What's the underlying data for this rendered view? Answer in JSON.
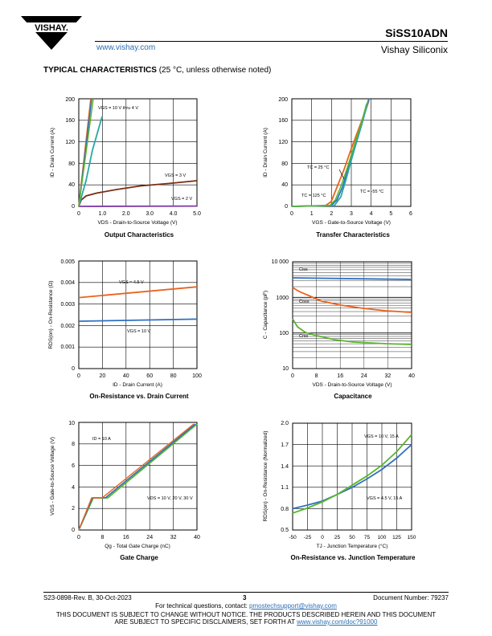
{
  "header": {
    "logo_text": "VISHAY.",
    "url": "www.vishay.com",
    "part_number": "SiSS10ADN",
    "company": "Vishay Siliconix"
  },
  "section": {
    "title": "TYPICAL CHARACTERISTICS",
    "subtitle": "(25 °C, unless otherwise noted)"
  },
  "colors": {
    "orange": "#e8641e",
    "blue": "#2f6fc0",
    "teal": "#2aa7a7",
    "green": "#5ab52e",
    "brown": "#7a2d12",
    "purple": "#7b3aa6",
    "gray": "#666666"
  },
  "charts": {
    "c1": {
      "title": "Output Characteristics",
      "ylabel": "ID - Drain Current (A)",
      "xlabel": "VDS - Drain-to-Source Voltage (V)",
      "yticks": [
        "0",
        "40",
        "80",
        "120",
        "160",
        "200"
      ],
      "xticks": [
        "0",
        "1.0",
        "2.0",
        "3.0",
        "4.0",
        "5.0"
      ],
      "labels": [
        "VGS = 10 V thru 4 V",
        "VGS = 3 V",
        "VGS = 2 V"
      ]
    },
    "c2": {
      "title": "Transfer Characteristics",
      "ylabel": "ID - Drain Current (A)",
      "xlabel": "VGS - Gate-to-Source Voltage (V)",
      "yticks": [
        "0",
        "40",
        "80",
        "120",
        "160",
        "200"
      ],
      "xticks": [
        "0",
        "1",
        "2",
        "3",
        "4",
        "5",
        "6"
      ],
      "labels": [
        "TC = 25 °C",
        "TC = 125 °C",
        "TC = -55 °C"
      ]
    },
    "c3": {
      "title": "On-Resistance vs. Drain Current",
      "ylabel": "RDS(on) - On-Resistance (Ω)",
      "xlabel": "ID - Drain Current (A)",
      "yticks": [
        "0",
        "0.001",
        "0.002",
        "0.003",
        "0.004",
        "0.005"
      ],
      "xticks": [
        "0",
        "20",
        "40",
        "60",
        "80",
        "100"
      ],
      "labels": [
        "VGS = 4.5 V",
        "VGS = 10 V"
      ]
    },
    "c4": {
      "title": "Capacitance",
      "ylabel": "C - Capacitance (pF)",
      "xlabel": "VDS - Drain-to-Source Voltage (V)",
      "yticks": [
        "10",
        "100",
        "1000",
        "10 000"
      ],
      "xticks": [
        "0",
        "8",
        "16",
        "24",
        "32",
        "40"
      ],
      "labels": [
        "Ciss",
        "Coss",
        "Crss"
      ]
    },
    "c5": {
      "title": "Gate Charge",
      "ylabel": "VGS - Gate-to-Source Voltage (V)",
      "xlabel": "Qg - Total Gate Charge (nC)",
      "yticks": [
        "0",
        "2",
        "4",
        "6",
        "8",
        "10"
      ],
      "xticks": [
        "0",
        "8",
        "16",
        "24",
        "32",
        "40"
      ],
      "labels": [
        "ID = 10 A",
        "VDS = 10 V, 20 V, 30 V"
      ]
    },
    "c6": {
      "title": "On-Resistance vs. Junction Temperature",
      "ylabel": "RDS(on) - On-Resistance (Normalized)",
      "xlabel": "TJ - Junction Temperature (°C)",
      "yticks": [
        "0.5",
        "0.8",
        "1.1",
        "1.4",
        "1.7",
        "2.0"
      ],
      "xticks": [
        "-50",
        "-25",
        "0",
        "25",
        "50",
        "75",
        "100",
        "125",
        "150"
      ],
      "labels": [
        "VGS = 10 V, 15 A",
        "VGS = 4.5 V, 15 A"
      ]
    }
  },
  "chart_data": [
    {
      "type": "line",
      "title": "Output Characteristics",
      "xlabel": "VDS - Drain-to-Source Voltage (V)",
      "ylabel": "ID - Drain Current (A)",
      "xlim": [
        0,
        5
      ],
      "ylim": [
        0,
        200
      ],
      "series": [
        {
          "name": "VGS = 10 V thru 4 V",
          "values": [
            [
              0,
              0
            ],
            [
              0.5,
              200
            ]
          ]
        },
        {
          "name": "VGS = 3 V",
          "values": [
            [
              0,
              0
            ],
            [
              0.1,
              12
            ],
            [
              0.3,
              20
            ],
            [
              1,
              26
            ],
            [
              2,
              32
            ],
            [
              3,
              38
            ],
            [
              4,
              43
            ],
            [
              4.9,
              47
            ]
          ]
        },
        {
          "name": "VGS = 2 V",
          "values": [
            [
              0,
              0
            ],
            [
              5,
              0.5
            ]
          ]
        }
      ]
    },
    {
      "type": "line",
      "title": "Transfer Characteristics",
      "xlabel": "VGS - Gate-to-Source Voltage (V)",
      "ylabel": "ID - Drain Current (A)",
      "xlim": [
        0,
        6
      ],
      "ylim": [
        0,
        200
      ],
      "series": [
        {
          "name": "TC = 25 °C",
          "values": [
            [
              2.2,
              0
            ],
            [
              2.6,
              25
            ],
            [
              3.2,
              100
            ],
            [
              3.9,
              200
            ]
          ]
        },
        {
          "name": "TC = 125 °C",
          "values": [
            [
              2.0,
              0
            ],
            [
              2.5,
              40
            ],
            [
              3.1,
              110
            ],
            [
              3.8,
              200
            ]
          ]
        },
        {
          "name": "TC = -55 °C",
          "values": [
            [
              2.5,
              0
            ],
            [
              2.8,
              30
            ],
            [
              3.3,
              100
            ],
            [
              3.9,
              200
            ]
          ]
        }
      ]
    },
    {
      "type": "line",
      "title": "On-Resistance vs. Drain Current",
      "xlabel": "ID - Drain Current (A)",
      "ylabel": "RDS(on) - On-Resistance (Ω)",
      "xlim": [
        0,
        100
      ],
      "ylim": [
        0,
        0.005
      ],
      "series": [
        {
          "name": "VGS = 4.5 V",
          "values": [
            [
              0,
              0.0033
            ],
            [
              100,
              0.0038
            ]
          ]
        },
        {
          "name": "VGS = 10 V",
          "values": [
            [
              0,
              0.0022
            ],
            [
              100,
              0.0023
            ]
          ]
        }
      ]
    },
    {
      "type": "line",
      "title": "Capacitance",
      "xlabel": "VDS - Drain-to-Source Voltage (V)",
      "ylabel": "C - Capacitance (pF)",
      "xlim": [
        0,
        40
      ],
      "ylim": [
        10,
        10000
      ],
      "yscale": "log",
      "series": [
        {
          "name": "Ciss",
          "values": [
            [
              0,
              3500
            ],
            [
              40,
              3200
            ]
          ]
        },
        {
          "name": "Coss",
          "values": [
            [
              0,
              1900
            ],
            [
              4,
              1100
            ],
            [
              16,
              600
            ],
            [
              24,
              480
            ],
            [
              40,
              380
            ]
          ]
        },
        {
          "name": "Crss",
          "values": [
            [
              0,
              250
            ],
            [
              4,
              130
            ],
            [
              10,
              70
            ],
            [
              20,
              45
            ],
            [
              40,
              38
            ]
          ]
        }
      ]
    },
    {
      "type": "line",
      "title": "Gate Charge",
      "xlabel": "Qg - Total Gate Charge (nC)",
      "ylabel": "VGS - Gate-to-Source Voltage (V)",
      "xlim": [
        0,
        40
      ],
      "ylim": [
        0,
        10
      ],
      "series": [
        {
          "name": "VDS = 10 V, 20 V, 30 V",
          "values": [
            [
              0,
              0
            ],
            [
              8,
              3
            ],
            [
              12,
              3
            ],
            [
              40,
              10
            ]
          ]
        }
      ]
    },
    {
      "type": "line",
      "title": "On-Resistance vs. Junction Temperature",
      "xlabel": "TJ - Junction Temperature (°C)",
      "ylabel": "RDS(on) - On-Resistance (Normalized)",
      "xlim": [
        -50,
        150
      ],
      "ylim": [
        0.5,
        2.0
      ],
      "series": [
        {
          "name": "VGS = 10 V, 15 A",
          "values": [
            [
              -50,
              0.72
            ],
            [
              25,
              1.0
            ],
            [
              75,
              1.25
            ],
            [
              150,
              1.84
            ]
          ]
        },
        {
          "name": "VGS = 4.5 V, 15 A",
          "values": [
            [
              -50,
              0.78
            ],
            [
              25,
              1.0
            ],
            [
              75,
              1.22
            ],
            [
              150,
              1.72
            ]
          ]
        }
      ]
    }
  ],
  "footer": {
    "left": "S23-0898-Rev. B, 30-Oct-2023",
    "page": "3",
    "right": "Document Number: 79237",
    "contact_prefix": "For technical questions, contact: ",
    "contact_email": "pmostechsupport@vishay.com",
    "disclaimer1": "THIS DOCUMENT IS SUBJECT TO CHANGE WITHOUT NOTICE. THE PRODUCTS DESCRIBED HEREIN AND THIS DOCUMENT",
    "disclaimer2_prefix": "ARE SUBJECT TO SPECIFIC DISCLAIMERS, SET FORTH AT ",
    "disclaimer2_link": "www.vishay.com/doc?91000"
  }
}
